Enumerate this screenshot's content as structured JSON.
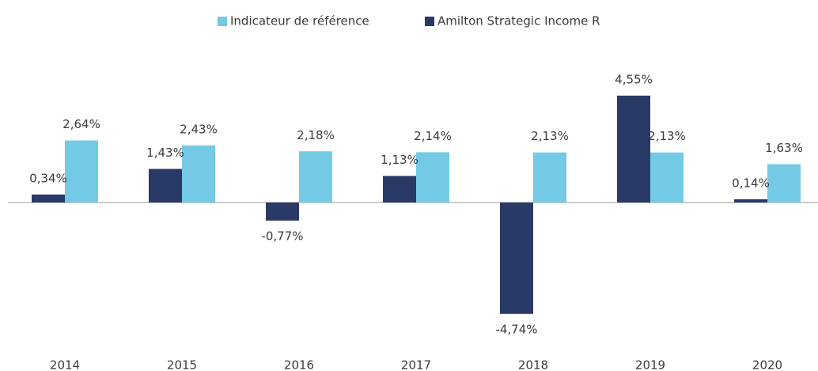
{
  "chart_data": {
    "type": "bar",
    "categories": [
      "2014",
      "2015",
      "2016",
      "2017",
      "2018",
      "2019",
      "2020"
    ],
    "series": [
      {
        "name": "Indicateur de référence",
        "color": "#74c9e5",
        "values": [
          2.64,
          2.43,
          2.18,
          2.14,
          2.13,
          2.13,
          1.63
        ],
        "value_labels": [
          "2,64%",
          "2,43%",
          "2,18%",
          "2,14%",
          "2,13%",
          "2,13%",
          "1,63%"
        ]
      },
      {
        "name": "Amilton Strategic Income R",
        "color": "#2a3a66",
        "values": [
          0.34,
          1.43,
          -0.77,
          1.13,
          -4.74,
          4.55,
          0.14
        ],
        "value_labels": [
          "0,34%",
          "1,43%",
          "-0,77%",
          "1,13%",
          "-4,74%",
          "4,55%",
          "0,14%"
        ]
      }
    ],
    "ylim": [
      -5,
      5
    ]
  }
}
